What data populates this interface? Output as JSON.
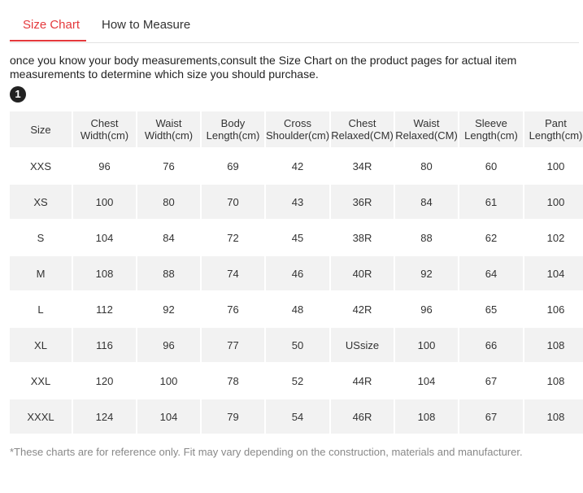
{
  "tabs": [
    {
      "label": "Size Chart",
      "active": true
    },
    {
      "label": "How to Measure",
      "active": false
    }
  ],
  "intro": "once you know your body measurements,consult the Size Chart on the product pages for actual item measurements to determine which size you should purchase.",
  "step_badge": "1",
  "colors": {
    "accent": "#e4393c",
    "stripe": "#f2f2f2",
    "footnote": "#888888"
  },
  "table": {
    "headers": [
      {
        "line1": "Size",
        "line2": ""
      },
      {
        "line1": "Chest",
        "line2": "Width(cm)"
      },
      {
        "line1": "Waist",
        "line2": "Width(cm)"
      },
      {
        "line1": "Body",
        "line2": "Length(cm)"
      },
      {
        "line1": "Cross",
        "line2": "Shoulder(cm)"
      },
      {
        "line1": "Chest",
        "line2": "Relaxed(CM)"
      },
      {
        "line1": "Waist",
        "line2": "Relaxed(CM)"
      },
      {
        "line1": "Sleeve",
        "line2": "Length(cm)"
      },
      {
        "line1": "Pant",
        "line2": "Length(cm)"
      }
    ],
    "rows": [
      [
        "XXS",
        "96",
        "76",
        "69",
        "42",
        "34R",
        "80",
        "60",
        "100"
      ],
      [
        "XS",
        "100",
        "80",
        "70",
        "43",
        "36R",
        "84",
        "61",
        "100"
      ],
      [
        "S",
        "104",
        "84",
        "72",
        "45",
        "38R",
        "88",
        "62",
        "102"
      ],
      [
        "M",
        "108",
        "88",
        "74",
        "46",
        "40R",
        "92",
        "64",
        "104"
      ],
      [
        "L",
        "112",
        "92",
        "76",
        "48",
        "42R",
        "96",
        "65",
        "106"
      ],
      [
        "XL",
        "116",
        "96",
        "77",
        "50",
        "USsize",
        "100",
        "66",
        "108"
      ],
      [
        "XXL",
        "120",
        "100",
        "78",
        "52",
        "44R",
        "104",
        "67",
        "108"
      ],
      [
        "XXXL",
        "124",
        "104",
        "79",
        "54",
        "46R",
        "108",
        "67",
        "108"
      ]
    ]
  },
  "footnote": "*These charts are for reference only. Fit may vary depending on the construction, materials and manufacturer."
}
